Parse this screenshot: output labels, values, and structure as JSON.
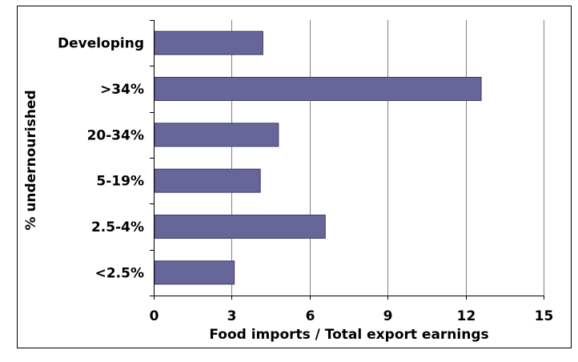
{
  "chart_data": {
    "type": "bar",
    "orientation": "horizontal",
    "categories": [
      "Developing",
      ">34%",
      "20-34%",
      "5-19%",
      "2.5-4%",
      "<2.5%"
    ],
    "values": [
      4.2,
      12.6,
      4.8,
      4.1,
      6.6,
      3.1
    ],
    "xlabel": "Food imports / Total export earnings",
    "ylabel": "% undernourished",
    "xlim": [
      0,
      15
    ],
    "xticks": [
      "0",
      "3",
      "6",
      "9",
      "12",
      "15"
    ],
    "grid": "vertical",
    "legend": "none",
    "colors": {
      "bar": "#666699",
      "bar_edge": "#3a3a6a",
      "grid": "#808080",
      "border": "#000000"
    }
  }
}
